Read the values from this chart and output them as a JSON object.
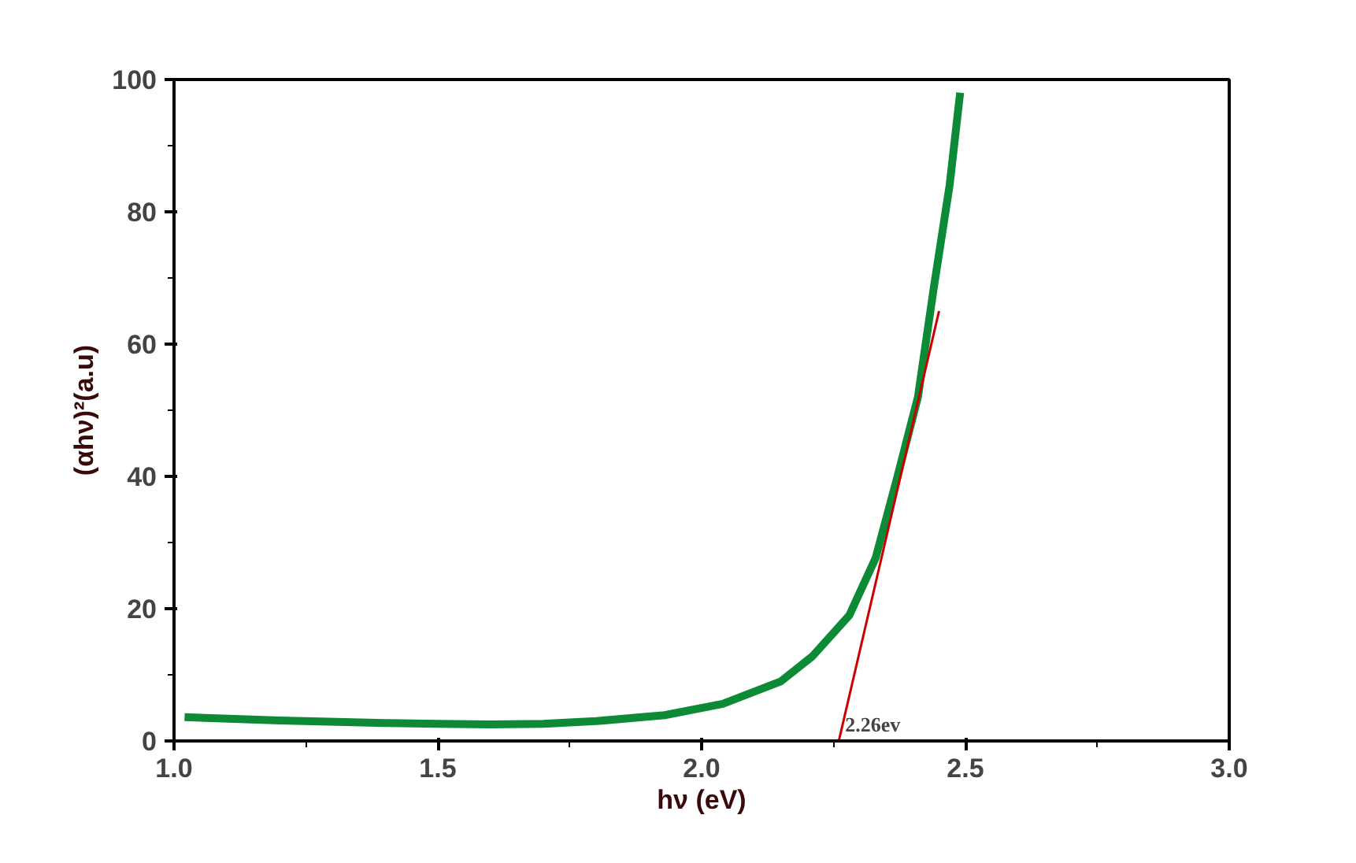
{
  "chart_data": {
    "type": "line",
    "xlabel": "hν (eV)",
    "ylabel": "(αhν)²(a.u)",
    "xlim": [
      1.0,
      3.0
    ],
    "xticks": [
      {
        "value": 1.0,
        "label": "1.0"
      },
      {
        "value": 1.5,
        "label": "1.5"
      },
      {
        "value": 2.0,
        "label": "2.0"
      },
      {
        "value": 2.5,
        "label": "2.5"
      },
      {
        "value": 3.0,
        "label": "3.0"
      }
    ],
    "ylim": [
      0,
      100
    ],
    "yticks": [
      0,
      20,
      40,
      60,
      80,
      100
    ],
    "grid": false,
    "marker": "none",
    "line_style": "solid",
    "series": [
      {
        "color": "#0d8a35",
        "x": [
          1.02,
          1.2,
          1.4,
          1.5,
          1.6,
          1.7,
          1.8,
          1.93,
          2.04,
          2.15,
          2.21,
          2.28,
          2.33,
          2.37,
          2.41,
          2.44,
          2.47,
          2.49
        ],
        "values": [
          3.6,
          3.1,
          2.7,
          2.6,
          2.5,
          2.6,
          3.0,
          3.9,
          5.6,
          9,
          12.8,
          19,
          27.7,
          39.6,
          52,
          68.5,
          84,
          98
        ]
      },
      {
        "color": "#cc0000",
        "x": [
          2.26,
          2.45
        ],
        "values": [
          0,
          65
        ]
      }
    ],
    "annotations": [
      {
        "text": "2.26ev",
        "x": 2.26,
        "y": 0
      }
    ]
  }
}
